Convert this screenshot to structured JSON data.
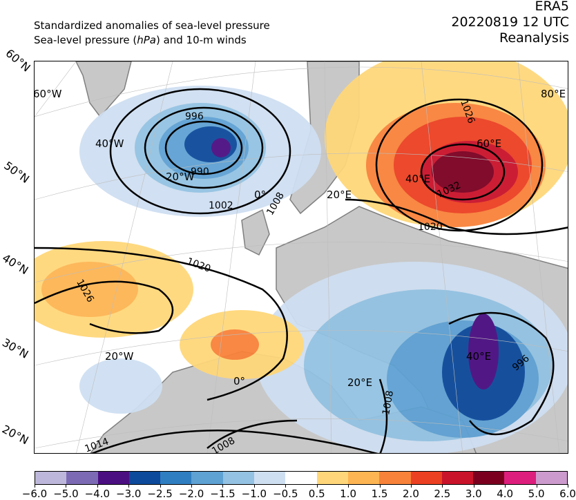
{
  "header": {
    "title_line1": "Standardized anomalies of sea-level pressure",
    "title_line2_a": "Sea-level pressure (",
    "title_line2_unit": "hPa",
    "title_line2_b": ") and 10-m winds",
    "dataset": "ERA5",
    "datetime": "20220819 12 UTC",
    "product": "Reanalysis"
  },
  "map": {
    "lat_labels": [
      "60°N",
      "50°N",
      "40°N",
      "30°N",
      "20°N"
    ],
    "lon_labels": [
      "60°W",
      "40°W",
      "20°W",
      "0°",
      "20°E",
      "60°E",
      "80°E",
      "20°W",
      "0°",
      "20°E",
      "40°E",
      "40°E"
    ],
    "isobar_labels": [
      "996",
      "990",
      "1002",
      "1008",
      "1020",
      "1026",
      "1020",
      "1032",
      "1026",
      "996",
      "1008",
      "1014",
      "1008"
    ],
    "colors": {
      "land": "#c8c8c8",
      "ocean": "#ffffff",
      "coast": "#7f7f7f"
    }
  },
  "colorbar": {
    "ticks": [
      "−6.0",
      "−5.0",
      "−4.0",
      "−3.0",
      "−2.5",
      "−2.0",
      "−1.5",
      "−1.0",
      "−0.5",
      "0.5",
      "1.0",
      "1.5",
      "2.0",
      "2.5",
      "3.0",
      "4.0",
      "5.0",
      "6.0"
    ],
    "colors": [
      "#bdb7db",
      "#7c6bb4",
      "#4b0f82",
      "#0d4a9b",
      "#2f7ec1",
      "#5ea1d3",
      "#93c2e2",
      "#cfdff2",
      "#ffffff",
      "#ffd77a",
      "#fdb553",
      "#f8823a",
      "#ec4022",
      "#c9132b",
      "#7b0020",
      "#de1e7d",
      "#cc9acd"
    ]
  }
}
